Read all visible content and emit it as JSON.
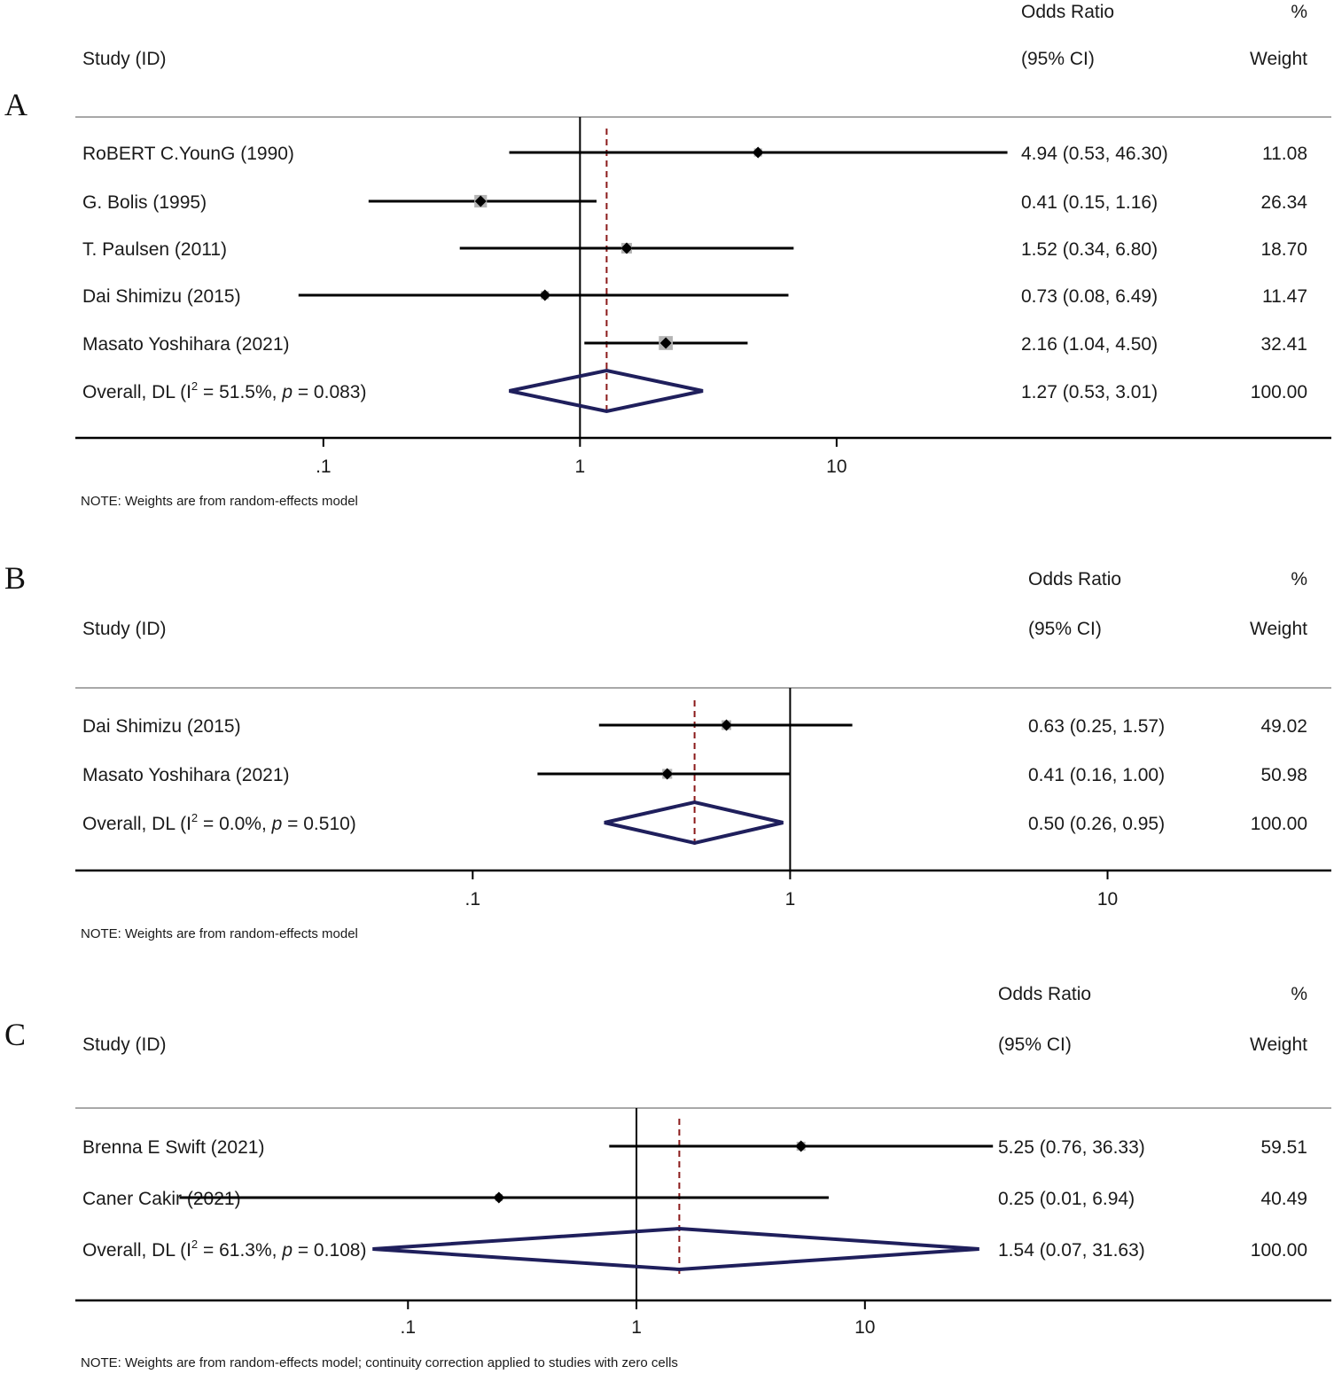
{
  "chart_data": [
    {
      "type": "forest",
      "panel_label": "A",
      "header": {
        "study": "Study (ID)",
        "or_top": "Odds Ratio",
        "or_bottom": "(95% CI)",
        "w_top": "%",
        "w_bottom": "Weight"
      },
      "x_scale": "log",
      "x_ticks": [
        ".1",
        "1",
        "10"
      ],
      "xlim": [
        0.0108,
        43.6
      ],
      "studies": [
        {
          "label": "RoBERT C.YounG (1990)",
          "or": 4.94,
          "lo": 0.53,
          "hi": 46.3,
          "ci_text": "4.94 (0.53, 46.30)",
          "weight": 11.08,
          "weight_text": "11.08"
        },
        {
          "label": "G. Bolis (1995)",
          "or": 0.41,
          "lo": 0.15,
          "hi": 1.16,
          "ci_text": "0.41 (0.15, 1.16)",
          "weight": 26.34,
          "weight_text": "26.34"
        },
        {
          "label": "T. Paulsen (2011)",
          "or": 1.52,
          "lo": 0.34,
          "hi": 6.8,
          "ci_text": "1.52 (0.34, 6.80)",
          "weight": 18.7,
          "weight_text": "18.70"
        },
        {
          "label": "Dai Shimizu (2015)",
          "or": 0.73,
          "lo": 0.08,
          "hi": 6.49,
          "ci_text": "0.73 (0.08, 6.49)",
          "weight": 11.47,
          "weight_text": "11.47"
        },
        {
          "label": "Masato Yoshihara  (2021)",
          "or": 2.16,
          "lo": 1.04,
          "hi": 4.5,
          "ci_text": "2.16 (1.04, 4.50)",
          "weight": 32.41,
          "weight_text": "32.41"
        }
      ],
      "overall": {
        "label_prefix": "Overall, DL (I",
        "label_sup": "2",
        "label_mid": " = 51.5%, ",
        "label_p": "p",
        "label_suffix": " = 0.083)",
        "or": 1.27,
        "lo": 0.53,
        "hi": 3.01,
        "ci_text": "1.27 (0.53, 3.01)",
        "weight_text": "100.00"
      },
      "note": "NOTE: Weights are from random-effects model"
    },
    {
      "type": "forest",
      "panel_label": "B",
      "header": {
        "study": "Study (ID)",
        "or_top": "Odds Ratio",
        "or_bottom": "(95% CI)",
        "w_top": "%",
        "w_bottom": "Weight"
      },
      "x_scale": "log",
      "x_ticks": [
        ".1",
        "1",
        "10"
      ],
      "xlim": [
        0.0056,
        50.7
      ],
      "studies": [
        {
          "label": "Dai Shimizu (2015)",
          "or": 0.63,
          "lo": 0.25,
          "hi": 1.57,
          "ci_text": "0.63 (0.25, 1.57)",
          "weight": 49.02,
          "weight_text": "49.02"
        },
        {
          "label": "Masato Yoshihara  (2021)",
          "or": 0.41,
          "lo": 0.16,
          "hi": 1.0,
          "ci_text": "0.41 (0.16, 1.00)",
          "weight": 50.98,
          "weight_text": "50.98"
        }
      ],
      "overall": {
        "label_prefix": "Overall, DL (I",
        "label_sup": "2",
        "label_mid": " = 0.0%, ",
        "label_p": "p",
        "label_suffix": " = 0.510)",
        "or": 0.5,
        "lo": 0.26,
        "hi": 0.95,
        "ci_text": "0.50 (0.26, 0.95)",
        "weight_text": "100.00"
      },
      "note": "NOTE: Weights are from random-effects model"
    },
    {
      "type": "forest",
      "panel_label": "C",
      "header": {
        "study": "Study (ID)",
        "or_top": "Odds Ratio",
        "or_bottom": "(95% CI)",
        "w_top": "%",
        "w_bottom": "Weight"
      },
      "x_scale": "log",
      "x_ticks": [
        ".1",
        "1",
        "10"
      ],
      "xlim": [
        0.0035,
        1100
      ],
      "studies": [
        {
          "label": "Brenna E Swift (2021)",
          "or": 5.25,
          "lo": 0.76,
          "hi": 36.33,
          "ci_text": "5.25 (0.76, 36.33)",
          "weight": 59.51,
          "weight_text": "59.51"
        },
        {
          "label": "Caner Cakir (2021)",
          "or": 0.25,
          "lo": 0.01,
          "hi": 6.94,
          "ci_text": "0.25 (0.01, 6.94)",
          "weight": 40.49,
          "weight_text": "40.49"
        }
      ],
      "overall": {
        "label_prefix": "Overall, DL (I",
        "label_sup": "2",
        "label_mid": " = 61.3%, ",
        "label_p": "p",
        "label_suffix": " = 0.108)",
        "or": 1.54,
        "lo": 0.07,
        "hi": 31.63,
        "ci_text": "1.54 (0.07, 31.63)",
        "weight_text": "100.00"
      },
      "note": "NOTE: Weights are from random-effects model; continuity correction applied to studies with zero cells"
    }
  ],
  "colors": {
    "ci_line": "#000000",
    "point": "#000000",
    "weight_box": "#b4b4b4",
    "diamond": "#1f1f5c",
    "overall_line": "#8b1a1a",
    "axis": "#000000",
    "rule": "#a8a8a8"
  }
}
